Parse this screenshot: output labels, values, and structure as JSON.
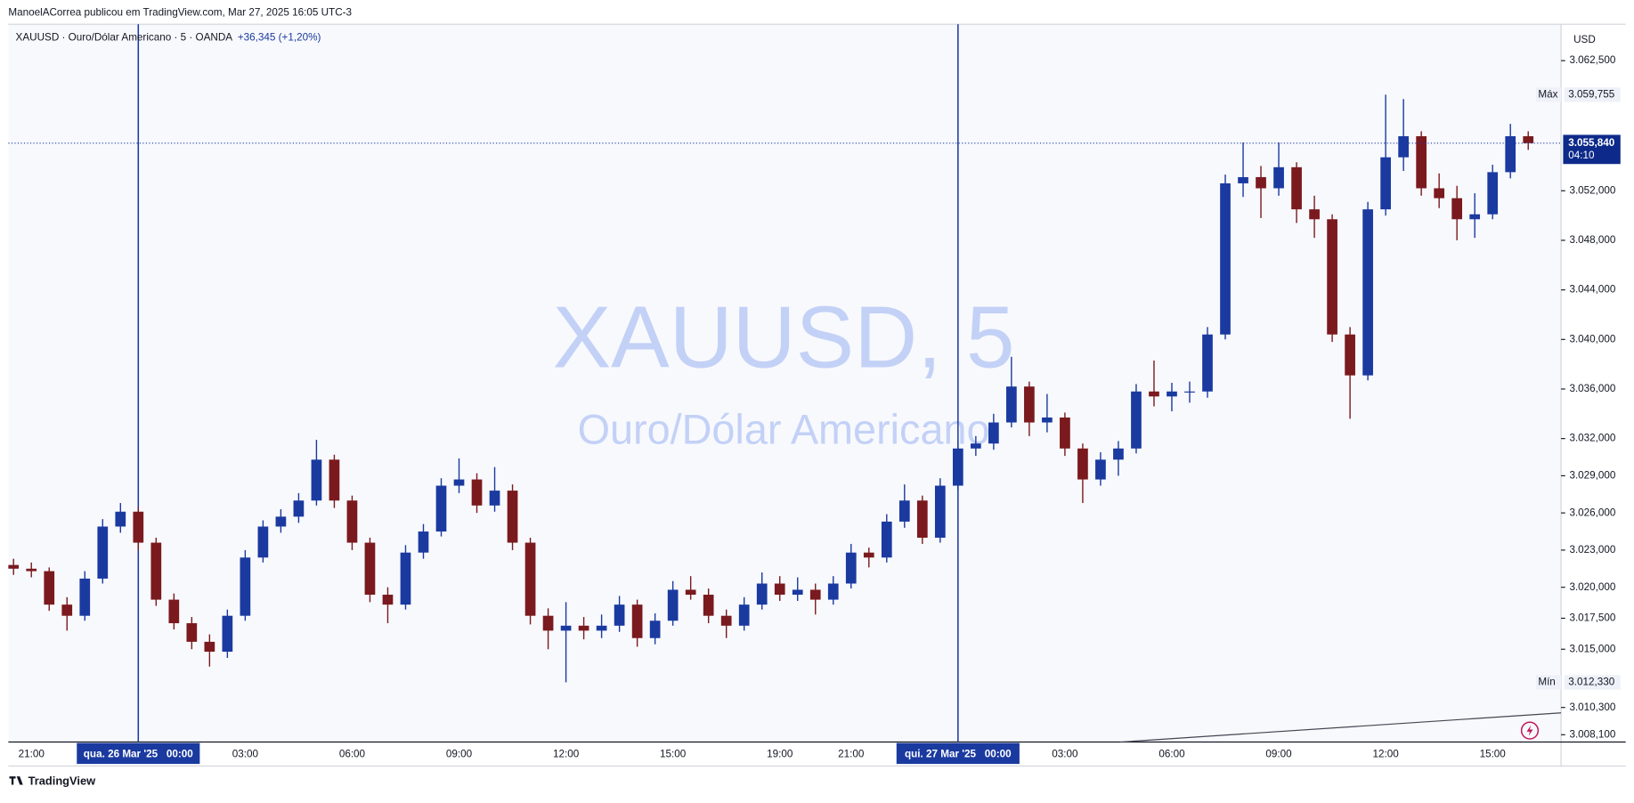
{
  "chart_data": {
    "type": "candlestick",
    "header": "ManoelACorrea publicou em TradingView.com, Mar 27, 2025 16:05 UTC-3",
    "legend": "XAUUSD · Ouro/Dólar Americano · 5 · OANDA",
    "change": "+36,345 (+1,20%)",
    "watermark_title": "XAUUSD, 5",
    "watermark_subtitle": "Ouro/Dólar Americano",
    "currency": "USD",
    "footer": "TradingView",
    "up_color": "#1a3aa0",
    "down_color": "#7a1a1e",
    "categories": [
      null,
      "21:00",
      null,
      null,
      null,
      null,
      null,
      "qua. 26 Mar '25   00:00",
      null,
      null,
      null,
      null,
      null,
      "03:00",
      null,
      null,
      null,
      null,
      null,
      "06:00",
      null,
      null,
      null,
      null,
      null,
      "09:00",
      null,
      null,
      null,
      null,
      null,
      "12:00",
      null,
      null,
      null,
      null,
      null,
      "15:00",
      null,
      null,
      null,
      null,
      null,
      "19:00",
      null,
      null,
      null,
      "21:00",
      null,
      null,
      null,
      null,
      null,
      "qui. 27 Mar '25   00:00",
      null,
      null,
      null,
      null,
      null,
      "03:00",
      null,
      null,
      null,
      null,
      null,
      "06:00",
      null,
      null,
      null,
      null,
      null,
      "09:00",
      null,
      null,
      null,
      null,
      null,
      "12:00",
      null,
      null,
      null,
      null,
      null,
      "15:00",
      null,
      null
    ],
    "ohlc": [
      [
        3021.8,
        3022.3,
        3021.0,
        3021.5
      ],
      [
        3021.5,
        3022.0,
        3020.8,
        3021.3
      ],
      [
        3021.3,
        3021.6,
        3018.1,
        3018.6
      ],
      [
        3018.6,
        3019.2,
        3016.5,
        3017.7
      ],
      [
        3017.7,
        3021.3,
        3017.3,
        3020.7
      ],
      [
        3020.7,
        3025.5,
        3020.3,
        3024.9
      ],
      [
        3024.9,
        3026.8,
        3024.4,
        3026.1
      ],
      [
        3026.1,
        3026.5,
        3023.0,
        3023.6
      ],
      [
        3023.6,
        3024.0,
        3018.5,
        3019.0
      ],
      [
        3019.0,
        3019.5,
        3016.6,
        3017.1
      ],
      [
        3017.1,
        3017.6,
        3015.0,
        3015.6
      ],
      [
        3015.6,
        3016.2,
        3013.6,
        3014.8
      ],
      [
        3014.8,
        3018.2,
        3014.3,
        3017.7
      ],
      [
        3017.7,
        3023.0,
        3017.3,
        3022.4
      ],
      [
        3022.4,
        3025.4,
        3022.0,
        3024.9
      ],
      [
        3024.9,
        3026.3,
        3024.4,
        3025.7
      ],
      [
        3025.7,
        3027.6,
        3025.2,
        3027.0
      ],
      [
        3027.0,
        3031.9,
        3026.6,
        3030.3
      ],
      [
        3030.3,
        3030.7,
        3026.4,
        3027.0
      ],
      [
        3027.0,
        3027.4,
        3023.0,
        3023.6
      ],
      [
        3023.6,
        3024.0,
        3018.8,
        3019.4
      ],
      [
        3019.4,
        3020.0,
        3017.1,
        3018.6
      ],
      [
        3018.6,
        3023.4,
        3018.2,
        3022.8
      ],
      [
        3022.8,
        3025.1,
        3022.3,
        3024.5
      ],
      [
        3024.5,
        3028.8,
        3024.1,
        3028.2
      ],
      [
        3028.2,
        3030.4,
        3027.6,
        3028.7
      ],
      [
        3028.7,
        3029.2,
        3026.0,
        3026.6
      ],
      [
        3026.6,
        3029.7,
        3026.1,
        3027.8
      ],
      [
        3027.8,
        3028.3,
        3023.0,
        3023.6
      ],
      [
        3023.6,
        3024.0,
        3017.0,
        3017.7
      ],
      [
        3017.7,
        3018.3,
        3015.0,
        3016.5
      ],
      [
        3016.5,
        3018.8,
        3012.33,
        3016.9
      ],
      [
        3016.9,
        3017.6,
        3015.8,
        3016.5
      ],
      [
        3016.5,
        3017.8,
        3015.9,
        3016.9
      ],
      [
        3016.9,
        3019.3,
        3016.4,
        3018.6
      ],
      [
        3018.6,
        3019.0,
        3015.2,
        3015.9
      ],
      [
        3015.9,
        3017.9,
        3015.4,
        3017.3
      ],
      [
        3017.3,
        3020.5,
        3016.9,
        3019.8
      ],
      [
        3019.8,
        3020.9,
        3019.0,
        3019.4
      ],
      [
        3019.4,
        3019.9,
        3017.1,
        3017.7
      ],
      [
        3017.7,
        3018.2,
        3015.9,
        3016.9
      ],
      [
        3016.9,
        3019.2,
        3016.5,
        3018.6
      ],
      [
        3018.6,
        3021.2,
        3018.2,
        3020.3
      ],
      [
        3020.3,
        3020.9,
        3018.9,
        3019.4
      ],
      [
        3019.4,
        3020.8,
        3018.9,
        3019.8
      ],
      [
        3019.8,
        3020.3,
        3017.8,
        3019.0
      ],
      [
        3019.0,
        3020.9,
        3018.6,
        3020.3
      ],
      [
        3020.3,
        3023.5,
        3019.9,
        3022.8
      ],
      [
        3022.8,
        3023.2,
        3021.6,
        3022.4
      ],
      [
        3022.4,
        3025.9,
        3022.0,
        3025.3
      ],
      [
        3025.3,
        3028.3,
        3024.8,
        3027.0
      ],
      [
        3027.0,
        3027.4,
        3023.5,
        3024.0
      ],
      [
        3024.0,
        3028.8,
        3023.6,
        3028.2
      ],
      [
        3028.2,
        3031.8,
        3027.8,
        3031.2
      ],
      [
        3031.2,
        3032.2,
        3030.6,
        3031.6
      ],
      [
        3031.6,
        3034.0,
        3031.1,
        3033.3
      ],
      [
        3033.3,
        3038.6,
        3032.9,
        3036.2
      ],
      [
        3036.2,
        3036.6,
        3032.2,
        3033.3
      ],
      [
        3033.3,
        3035.6,
        3032.5,
        3033.7
      ],
      [
        3033.7,
        3034.1,
        3030.6,
        3031.2
      ],
      [
        3031.2,
        3031.6,
        3026.8,
        3028.7
      ],
      [
        3028.7,
        3030.9,
        3028.2,
        3030.3
      ],
      [
        3030.3,
        3031.8,
        3029.0,
        3031.2
      ],
      [
        3031.2,
        3036.4,
        3030.8,
        3035.8
      ],
      [
        3035.8,
        3038.3,
        3034.6,
        3035.4
      ],
      [
        3035.4,
        3036.5,
        3034.2,
        3035.8
      ],
      [
        3035.8,
        3036.6,
        3034.9,
        3035.8
      ],
      [
        3035.8,
        3041.0,
        3035.3,
        3040.4
      ],
      [
        3040.4,
        3053.3,
        3040.0,
        3052.6
      ],
      [
        3052.6,
        3055.9,
        3051.5,
        3053.1
      ],
      [
        3053.1,
        3054.0,
        3049.8,
        3052.2
      ],
      [
        3052.2,
        3055.9,
        3051.6,
        3053.9
      ],
      [
        3053.9,
        3054.3,
        3049.4,
        3050.5
      ],
      [
        3050.5,
        3051.6,
        3048.2,
        3049.7
      ],
      [
        3049.7,
        3050.1,
        3039.8,
        3040.4
      ],
      [
        3040.4,
        3041.0,
        3033.6,
        3037.1
      ],
      [
        3037.1,
        3051.1,
        3036.7,
        3050.5
      ],
      [
        3050.5,
        3059.755,
        3050.0,
        3054.7
      ],
      [
        3054.7,
        3059.4,
        3053.6,
        3056.4
      ],
      [
        3056.4,
        3056.8,
        3051.6,
        3052.2
      ],
      [
        3052.2,
        3053.4,
        3050.6,
        3051.4
      ],
      [
        3051.4,
        3052.4,
        3048.0,
        3049.7
      ],
      [
        3049.7,
        3051.8,
        3048.2,
        3050.1
      ],
      [
        3050.1,
        3054.1,
        3049.7,
        3053.5
      ],
      [
        3053.5,
        3057.4,
        3053.0,
        3056.4
      ],
      [
        3056.4,
        3056.8,
        3055.3,
        3055.84
      ]
    ],
    "ylim": [
      3007.51,
      3065.44
    ],
    "yticks": [
      {
        "value": 3062.5,
        "label": "3.062,500"
      },
      {
        "value": 3052,
        "label": "3.052,000"
      },
      {
        "value": 3048,
        "label": "3.048,000"
      },
      {
        "value": 3044,
        "label": "3.044,000"
      },
      {
        "value": 3040,
        "label": "3.040,000"
      },
      {
        "value": 3036,
        "label": "3.036,000"
      },
      {
        "value": 3032,
        "label": "3.032,000"
      },
      {
        "value": 3029,
        "label": "3.029,000"
      },
      {
        "value": 3026,
        "label": "3.026,000"
      },
      {
        "value": 3023,
        "label": "3.023,000"
      },
      {
        "value": 3020,
        "label": "3.020,000"
      },
      {
        "value": 3017.5,
        "label": "3.017,500"
      },
      {
        "value": 3015,
        "label": "3.015,000"
      },
      {
        "value": 3010.3,
        "label": "3.010,300"
      },
      {
        "value": 3008.1,
        "label": "3.008,100"
      }
    ],
    "last_price": {
      "value": 3055.84,
      "label": "3.055,840"
    },
    "countdown": "04:10",
    "max_label": "Máx",
    "max": {
      "value": 3059.755,
      "label": "3.059,755"
    },
    "min_label": "Mín",
    "min": {
      "value": 3012.33,
      "label": "3.012,330"
    }
  }
}
